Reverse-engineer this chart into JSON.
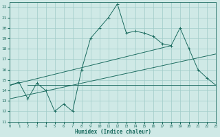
{
  "xlabel": "Humidex (Indice chaleur)",
  "bg_color": "#cfe9e6",
  "grid_color": "#a0ccc8",
  "line_color": "#1b6b5f",
  "xlim": [
    0,
    23
  ],
  "ylim": [
    11,
    22.5
  ],
  "xticks": [
    0,
    1,
    2,
    3,
    4,
    5,
    6,
    7,
    8,
    9,
    10,
    11,
    12,
    13,
    14,
    15,
    16,
    17,
    18,
    19,
    20,
    21,
    22,
    23
  ],
  "yticks": [
    11,
    12,
    13,
    14,
    15,
    16,
    17,
    18,
    19,
    20,
    21,
    22
  ],
  "main_x": [
    0,
    1,
    2,
    3,
    4,
    5,
    6,
    7,
    8,
    9,
    10,
    11,
    12,
    13,
    14,
    15,
    16,
    17,
    18,
    19,
    20,
    21,
    22,
    23
  ],
  "main_y": [
    14.5,
    14.8,
    13.2,
    14.7,
    14.0,
    12.0,
    12.7,
    12.0,
    16.0,
    19.0,
    20.0,
    21.0,
    22.3,
    19.5,
    19.7,
    19.5,
    19.2,
    18.5,
    18.3,
    20.0,
    18.0,
    16.0,
    15.2,
    14.5
  ],
  "line1_x": [
    0,
    18
  ],
  "line1_y": [
    14.5,
    18.3
  ],
  "line2_x": [
    0,
    23
  ],
  "line2_y": [
    13.2,
    17.5
  ],
  "line3_x": [
    2,
    23
  ],
  "line3_y": [
    14.5,
    14.5
  ]
}
